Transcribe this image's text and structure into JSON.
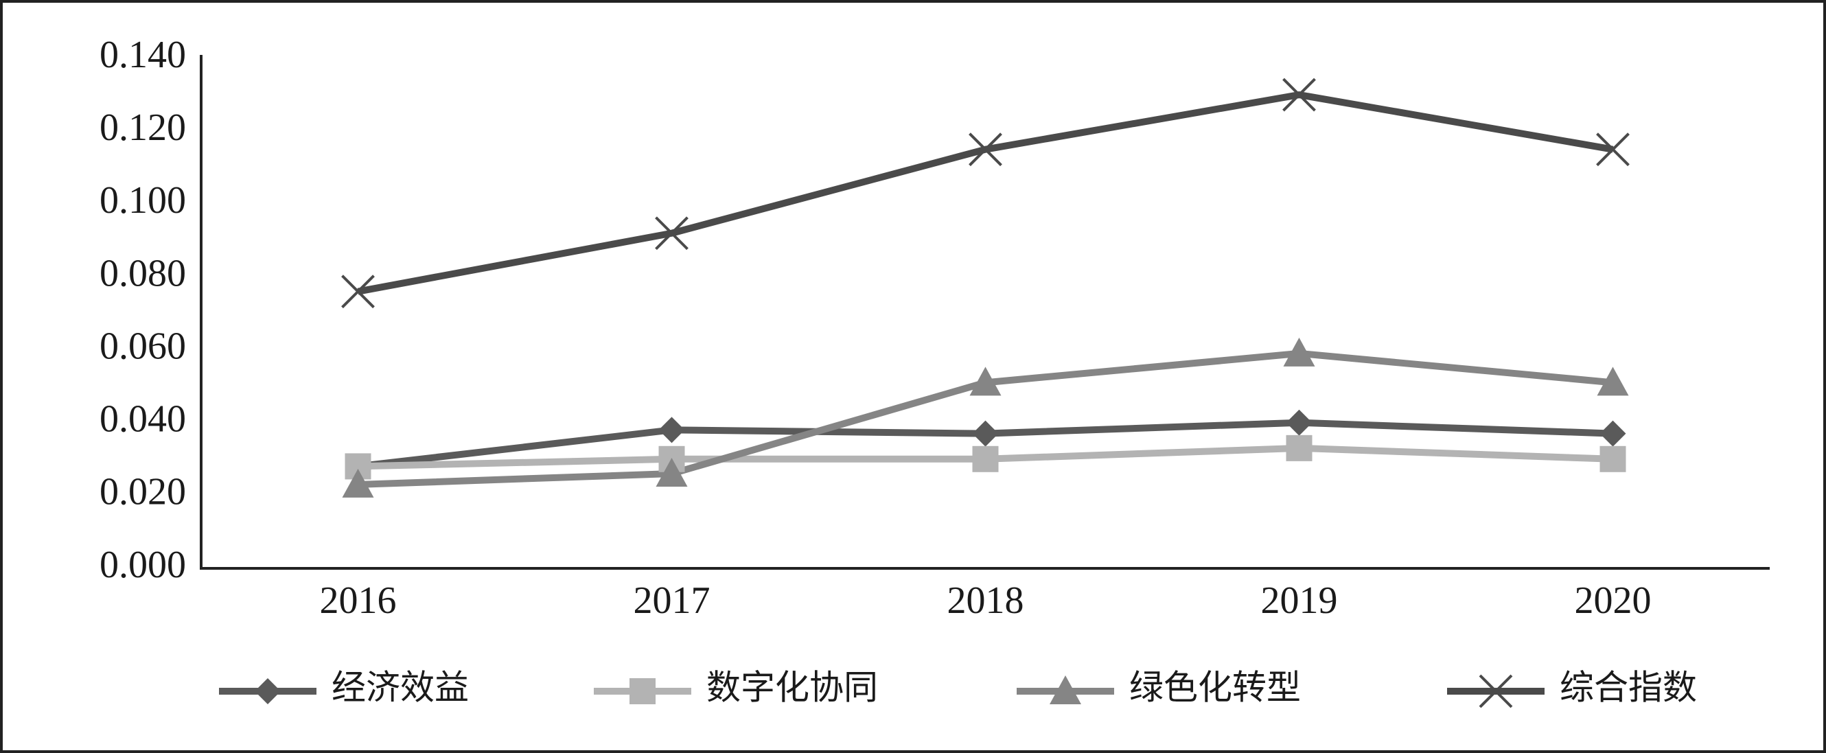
{
  "chart_data": {
    "type": "line",
    "categories": [
      "2016",
      "2017",
      "2018",
      "2019",
      "2020"
    ],
    "series": [
      {
        "name": "经济效益",
        "color": "#5a5a5a",
        "marker": "diamond",
        "values": [
          0.028,
          0.038,
          0.037,
          0.04,
          0.037
        ]
      },
      {
        "name": "数字化协同",
        "color": "#b3b3b3",
        "marker": "square",
        "values": [
          0.028,
          0.03,
          0.03,
          0.033,
          0.03
        ]
      },
      {
        "name": "绿色化转型",
        "color": "#858585",
        "marker": "triangle",
        "values": [
          0.023,
          0.026,
          0.051,
          0.059,
          0.051
        ]
      },
      {
        "name": "综合指数",
        "color": "#4a4a4a",
        "marker": "x",
        "values": [
          0.076,
          0.092,
          0.115,
          0.13,
          0.115
        ]
      }
    ],
    "ylim": [
      0,
      0.14
    ],
    "yticks": [
      {
        "value": 0,
        "label": "0.000"
      },
      {
        "value": 0.02,
        "label": "0.020"
      },
      {
        "value": 0.04,
        "label": "0.040"
      },
      {
        "value": 0.06,
        "label": "0.060"
      },
      {
        "value": 0.08,
        "label": "0.080"
      },
      {
        "value": 0.1,
        "label": "0.100"
      },
      {
        "value": 0.12,
        "label": "0.120"
      },
      {
        "value": 0.14,
        "label": "0.140"
      }
    ],
    "grid": false,
    "legend": "bottom"
  }
}
